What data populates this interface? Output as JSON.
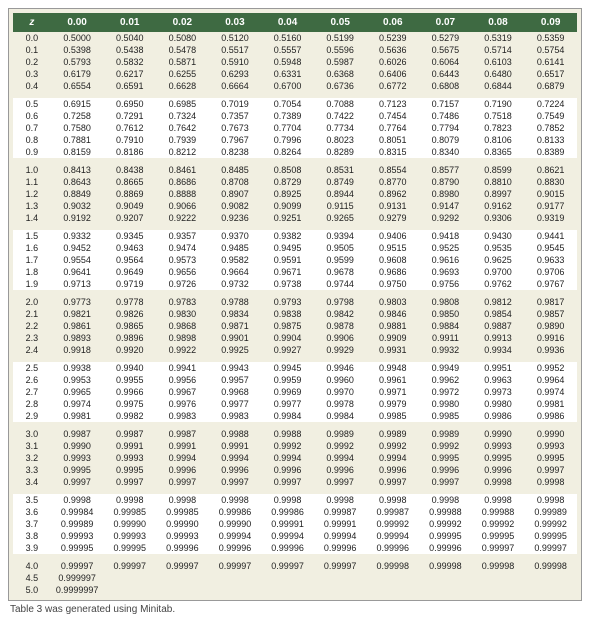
{
  "header": {
    "z": "z",
    "cols": [
      "0.00",
      "0.01",
      "0.02",
      "0.03",
      "0.04",
      "0.05",
      "0.06",
      "0.07",
      "0.08",
      "0.09"
    ]
  },
  "caption": "Table 3 was generated using Minitab.",
  "colors": {
    "header_bg": "#3e6a42",
    "header_fg": "#ffffff",
    "band_a": "#f1efe1",
    "band_b": "#ffffff"
  },
  "groups": [
    [
      {
        "z": "0.0",
        "v": [
          "0.5000",
          "0.5040",
          "0.5080",
          "0.5120",
          "0.5160",
          "0.5199",
          "0.5239",
          "0.5279",
          "0.5319",
          "0.5359"
        ]
      },
      {
        "z": "0.1",
        "v": [
          "0.5398",
          "0.5438",
          "0.5478",
          "0.5517",
          "0.5557",
          "0.5596",
          "0.5636",
          "0.5675",
          "0.5714",
          "0.5754"
        ]
      },
      {
        "z": "0.2",
        "v": [
          "0.5793",
          "0.5832",
          "0.5871",
          "0.5910",
          "0.5948",
          "0.5987",
          "0.6026",
          "0.6064",
          "0.6103",
          "0.6141"
        ]
      },
      {
        "z": "0.3",
        "v": [
          "0.6179",
          "0.6217",
          "0.6255",
          "0.6293",
          "0.6331",
          "0.6368",
          "0.6406",
          "0.6443",
          "0.6480",
          "0.6517"
        ]
      },
      {
        "z": "0.4",
        "v": [
          "0.6554",
          "0.6591",
          "0.6628",
          "0.6664",
          "0.6700",
          "0.6736",
          "0.6772",
          "0.6808",
          "0.6844",
          "0.6879"
        ]
      }
    ],
    [
      {
        "z": "0.5",
        "v": [
          "0.6915",
          "0.6950",
          "0.6985",
          "0.7019",
          "0.7054",
          "0.7088",
          "0.7123",
          "0.7157",
          "0.7190",
          "0.7224"
        ]
      },
      {
        "z": "0.6",
        "v": [
          "0.7258",
          "0.7291",
          "0.7324",
          "0.7357",
          "0.7389",
          "0.7422",
          "0.7454",
          "0.7486",
          "0.7518",
          "0.7549"
        ]
      },
      {
        "z": "0.7",
        "v": [
          "0.7580",
          "0.7612",
          "0.7642",
          "0.7673",
          "0.7704",
          "0.7734",
          "0.7764",
          "0.7794",
          "0.7823",
          "0.7852"
        ]
      },
      {
        "z": "0.8",
        "v": [
          "0.7881",
          "0.7910",
          "0.7939",
          "0.7967",
          "0.7996",
          "0.8023",
          "0.8051",
          "0.8079",
          "0.8106",
          "0.8133"
        ]
      },
      {
        "z": "0.9",
        "v": [
          "0.8159",
          "0.8186",
          "0.8212",
          "0.8238",
          "0.8264",
          "0.8289",
          "0.8315",
          "0.8340",
          "0.8365",
          "0.8389"
        ]
      }
    ],
    [
      {
        "z": "1.0",
        "v": [
          "0.8413",
          "0.8438",
          "0.8461",
          "0.8485",
          "0.8508",
          "0.8531",
          "0.8554",
          "0.8577",
          "0.8599",
          "0.8621"
        ]
      },
      {
        "z": "1.1",
        "v": [
          "0.8643",
          "0.8665",
          "0.8686",
          "0.8708",
          "0.8729",
          "0.8749",
          "0.8770",
          "0.8790",
          "0.8810",
          "0.8830"
        ]
      },
      {
        "z": "1.2",
        "v": [
          "0.8849",
          "0.8869",
          "0.8888",
          "0.8907",
          "0.8925",
          "0.8944",
          "0.8962",
          "0.8980",
          "0.8997",
          "0.9015"
        ]
      },
      {
        "z": "1.3",
        "v": [
          "0.9032",
          "0.9049",
          "0.9066",
          "0.9082",
          "0.9099",
          "0.9115",
          "0.9131",
          "0.9147",
          "0.9162",
          "0.9177"
        ]
      },
      {
        "z": "1.4",
        "v": [
          "0.9192",
          "0.9207",
          "0.9222",
          "0.9236",
          "0.9251",
          "0.9265",
          "0.9279",
          "0.9292",
          "0.9306",
          "0.9319"
        ]
      }
    ],
    [
      {
        "z": "1.5",
        "v": [
          "0.9332",
          "0.9345",
          "0.9357",
          "0.9370",
          "0.9382",
          "0.9394",
          "0.9406",
          "0.9418",
          "0.9430",
          "0.9441"
        ]
      },
      {
        "z": "1.6",
        "v": [
          "0.9452",
          "0.9463",
          "0.9474",
          "0.9485",
          "0.9495",
          "0.9505",
          "0.9515",
          "0.9525",
          "0.9535",
          "0.9545"
        ]
      },
      {
        "z": "1.7",
        "v": [
          "0.9554",
          "0.9564",
          "0.9573",
          "0.9582",
          "0.9591",
          "0.9599",
          "0.9608",
          "0.9616",
          "0.9625",
          "0.9633"
        ]
      },
      {
        "z": "1.8",
        "v": [
          "0.9641",
          "0.9649",
          "0.9656",
          "0.9664",
          "0.9671",
          "0.9678",
          "0.9686",
          "0.9693",
          "0.9700",
          "0.9706"
        ]
      },
      {
        "z": "1.9",
        "v": [
          "0.9713",
          "0.9719",
          "0.9726",
          "0.9732",
          "0.9738",
          "0.9744",
          "0.9750",
          "0.9756",
          "0.9762",
          "0.9767"
        ]
      }
    ],
    [
      {
        "z": "2.0",
        "v": [
          "0.9773",
          "0.9778",
          "0.9783",
          "0.9788",
          "0.9793",
          "0.9798",
          "0.9803",
          "0.9808",
          "0.9812",
          "0.9817"
        ]
      },
      {
        "z": "2.1",
        "v": [
          "0.9821",
          "0.9826",
          "0.9830",
          "0.9834",
          "0.9838",
          "0.9842",
          "0.9846",
          "0.9850",
          "0.9854",
          "0.9857"
        ]
      },
      {
        "z": "2.2",
        "v": [
          "0.9861",
          "0.9865",
          "0.9868",
          "0.9871",
          "0.9875",
          "0.9878",
          "0.9881",
          "0.9884",
          "0.9887",
          "0.9890"
        ]
      },
      {
        "z": "2.3",
        "v": [
          "0.9893",
          "0.9896",
          "0.9898",
          "0.9901",
          "0.9904",
          "0.9906",
          "0.9909",
          "0.9911",
          "0.9913",
          "0.9916"
        ]
      },
      {
        "z": "2.4",
        "v": [
          "0.9918",
          "0.9920",
          "0.9922",
          "0.9925",
          "0.9927",
          "0.9929",
          "0.9931",
          "0.9932",
          "0.9934",
          "0.9936"
        ]
      }
    ],
    [
      {
        "z": "2.5",
        "v": [
          "0.9938",
          "0.9940",
          "0.9941",
          "0.9943",
          "0.9945",
          "0.9946",
          "0.9948",
          "0.9949",
          "0.9951",
          "0.9952"
        ]
      },
      {
        "z": "2.6",
        "v": [
          "0.9953",
          "0.9955",
          "0.9956",
          "0.9957",
          "0.9959",
          "0.9960",
          "0.9961",
          "0.9962",
          "0.9963",
          "0.9964"
        ]
      },
      {
        "z": "2.7",
        "v": [
          "0.9965",
          "0.9966",
          "0.9967",
          "0.9968",
          "0.9969",
          "0.9970",
          "0.9971",
          "0.9972",
          "0.9973",
          "0.9974"
        ]
      },
      {
        "z": "2.8",
        "v": [
          "0.9974",
          "0.9975",
          "0.9976",
          "0.9977",
          "0.9977",
          "0.9978",
          "0.9979",
          "0.9980",
          "0.9980",
          "0.9981"
        ]
      },
      {
        "z": "2.9",
        "v": [
          "0.9981",
          "0.9982",
          "0.9983",
          "0.9983",
          "0.9984",
          "0.9984",
          "0.9985",
          "0.9985",
          "0.9986",
          "0.9986"
        ]
      }
    ],
    [
      {
        "z": "3.0",
        "v": [
          "0.9987",
          "0.9987",
          "0.9987",
          "0.9988",
          "0.9988",
          "0.9989",
          "0.9989",
          "0.9989",
          "0.9990",
          "0.9990"
        ]
      },
      {
        "z": "3.1",
        "v": [
          "0.9990",
          "0.9991",
          "0.9991",
          "0.9991",
          "0.9992",
          "0.9992",
          "0.9992",
          "0.9992",
          "0.9993",
          "0.9993"
        ]
      },
      {
        "z": "3.2",
        "v": [
          "0.9993",
          "0.9993",
          "0.9994",
          "0.9994",
          "0.9994",
          "0.9994",
          "0.9994",
          "0.9995",
          "0.9995",
          "0.9995"
        ]
      },
      {
        "z": "3.3",
        "v": [
          "0.9995",
          "0.9995",
          "0.9996",
          "0.9996",
          "0.9996",
          "0.9996",
          "0.9996",
          "0.9996",
          "0.9996",
          "0.9997"
        ]
      },
      {
        "z": "3.4",
        "v": [
          "0.9997",
          "0.9997",
          "0.9997",
          "0.9997",
          "0.9997",
          "0.9997",
          "0.9997",
          "0.9997",
          "0.9998",
          "0.9998"
        ]
      }
    ],
    [
      {
        "z": "3.5",
        "v": [
          "0.9998",
          "0.9998",
          "0.9998",
          "0.9998",
          "0.9998",
          "0.9998",
          "0.9998",
          "0.9998",
          "0.9998",
          "0.9998"
        ]
      },
      {
        "z": "3.6",
        "v": [
          "0.99984",
          "0.99985",
          "0.99985",
          "0.99986",
          "0.99986",
          "0.99987",
          "0.99987",
          "0.99988",
          "0.99988",
          "0.99989"
        ]
      },
      {
        "z": "3.7",
        "v": [
          "0.99989",
          "0.99990",
          "0.99990",
          "0.99990",
          "0.99991",
          "0.99991",
          "0.99992",
          "0.99992",
          "0.99992",
          "0.99992"
        ]
      },
      {
        "z": "3.8",
        "v": [
          "0.99993",
          "0.99993",
          "0.99993",
          "0.99994",
          "0.99994",
          "0.99994",
          "0.99994",
          "0.99995",
          "0.99995",
          "0.99995"
        ]
      },
      {
        "z": "3.9",
        "v": [
          "0.99995",
          "0.99995",
          "0.99996",
          "0.99996",
          "0.99996",
          "0.99996",
          "0.99996",
          "0.99996",
          "0.99997",
          "0.99997"
        ]
      }
    ],
    [
      {
        "z": "4.0",
        "v": [
          "0.99997",
          "0.99997",
          "0.99997",
          "0.99997",
          "0.99997",
          "0.99997",
          "0.99998",
          "0.99998",
          "0.99998",
          "0.99998"
        ]
      },
      {
        "z": "4.5",
        "v": [
          "0.999997",
          "",
          "",
          "",
          "",
          "",
          "",
          "",
          "",
          ""
        ]
      },
      {
        "z": "5.0",
        "v": [
          "0.9999997",
          "",
          "",
          "",
          "",
          "",
          "",
          "",
          "",
          ""
        ]
      }
    ]
  ]
}
